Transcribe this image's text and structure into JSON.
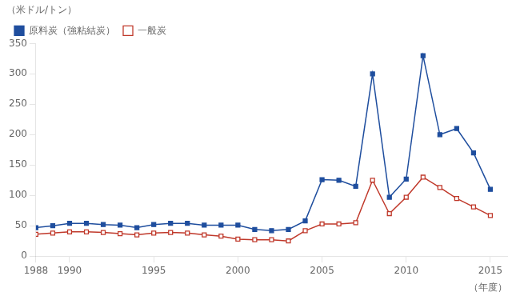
{
  "chart_data": {
    "type": "line",
    "x": [
      1988,
      1989,
      1990,
      1991,
      1992,
      1993,
      1994,
      1995,
      1996,
      1997,
      1998,
      1999,
      2000,
      2001,
      2002,
      2003,
      2004,
      2005,
      2006,
      2007,
      2008,
      2009,
      2010,
      2011,
      2012,
      2013,
      2014,
      2015
    ],
    "series": [
      {
        "name": "原料炭（強粘結炭）",
        "color": "#1f4e9e",
        "marker": "square",
        "values": [
          47,
          50,
          54,
          54,
          52,
          51,
          47,
          52,
          54,
          54,
          51,
          51,
          51,
          44,
          42,
          44,
          58,
          126,
          125,
          115,
          300,
          97,
          127,
          330,
          200,
          210,
          170,
          110
        ]
      },
      {
        "name": "一般炭",
        "color": "#c0392b",
        "marker": "square-open",
        "values": [
          36,
          38,
          40,
          40,
          39,
          37,
          35,
          38,
          39,
          38,
          35,
          33,
          28,
          27,
          27,
          25,
          42,
          53,
          53,
          55,
          125,
          70,
          97,
          130,
          113,
          95,
          81,
          67
        ]
      }
    ],
    "xlabel": "（年度）",
    "ylabel": "（米ドル/トン）",
    "xlim": [
      1988,
      2016
    ],
    "xticks": [
      1988,
      1990,
      1995,
      2000,
      2005,
      2010,
      2015
    ],
    "ylim": [
      0,
      350
    ],
    "yticks": [
      0,
      50,
      100,
      150,
      200,
      250,
      300,
      350
    ],
    "grid": false,
    "legend": "upper left"
  }
}
